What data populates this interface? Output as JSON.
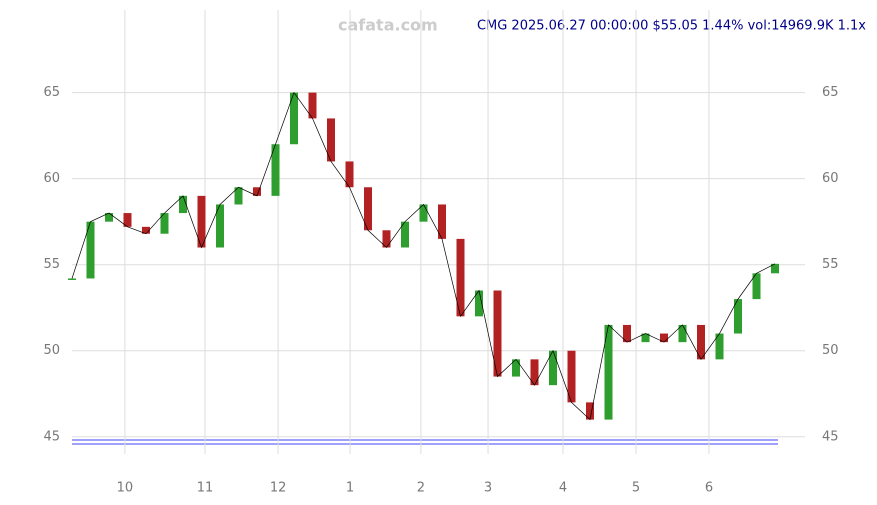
{
  "chart_data": {
    "type": "candle",
    "watermark": "cafata.com",
    "title": "CMG 2025.06.27 00:00:00 $55.05 1.44% vol:14969.9K 1.1x",
    "x": [
      0,
      1,
      2,
      3,
      4,
      5,
      6,
      7,
      8,
      9,
      10,
      11,
      12,
      13,
      14,
      15,
      16,
      17,
      18,
      19,
      20,
      21,
      22,
      23,
      24,
      25,
      26,
      27,
      28,
      29,
      30,
      31,
      32,
      33,
      34,
      35,
      36,
      37,
      38
    ],
    "values": [
      54.2,
      57.5,
      58.0,
      57.2,
      56.8,
      58.0,
      59.0,
      56.0,
      58.5,
      59.5,
      59.0,
      62.0,
      65.0,
      63.5,
      61.0,
      59.5,
      57.0,
      56.0,
      57.5,
      58.5,
      56.5,
      52.0,
      53.5,
      48.5,
      49.5,
      48.0,
      50.0,
      47.0,
      46.0,
      51.5,
      50.5,
      51.0,
      50.5,
      51.5,
      49.5,
      51.0,
      53.0,
      54.5,
      55.05
    ],
    "up_color": "#2e9e2e",
    "down_color": "#b22222",
    "xlim": [
      0,
      38
    ],
    "xticks": [
      {
        "value": 2.86,
        "label": "10"
      },
      {
        "value": 7.19,
        "label": "11"
      },
      {
        "value": 11.14,
        "label": "12"
      },
      {
        "value": 15.03,
        "label": "1"
      },
      {
        "value": 18.86,
        "label": "2"
      },
      {
        "value": 22.49,
        "label": "3"
      },
      {
        "value": 26.54,
        "label": "4"
      },
      {
        "value": 30.49,
        "label": "5"
      },
      {
        "value": 34.43,
        "label": "6"
      }
    ],
    "ylim": [
      44,
      69.8
    ],
    "yticks": [
      45,
      50,
      55,
      60,
      65
    ],
    "grid": true
  }
}
